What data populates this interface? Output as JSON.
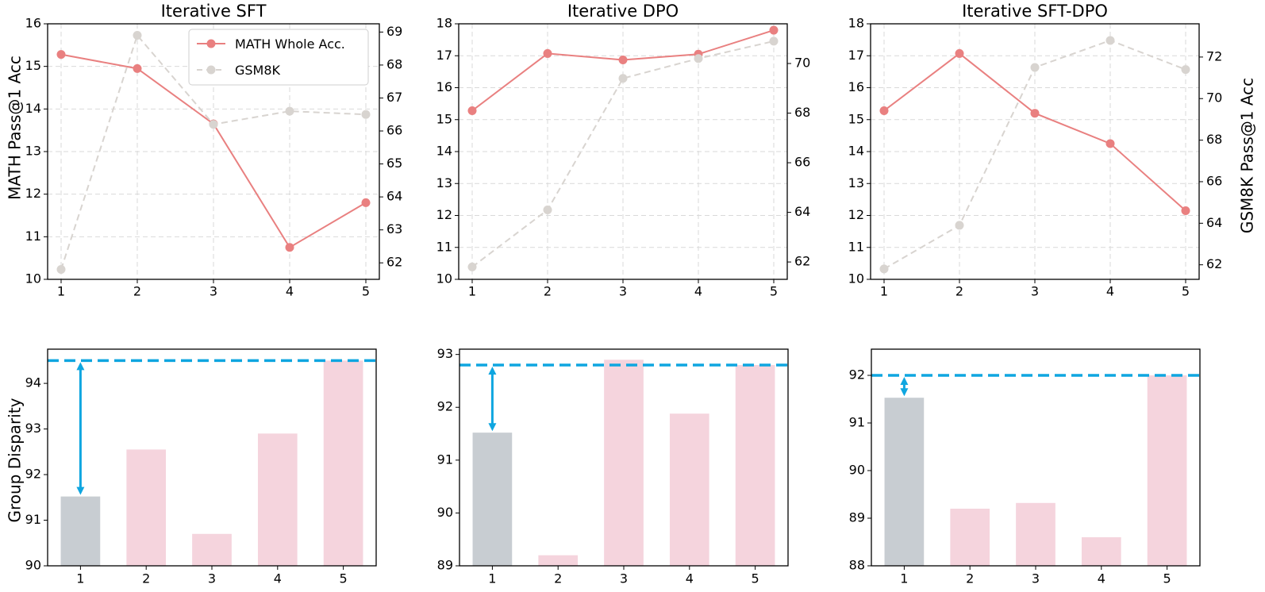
{
  "colors": {
    "math": "#e98080",
    "gsm": "#d8d4d0",
    "bar_base": "#c8cdd2",
    "bar": "#f5d4dd",
    "ref": "#0fa6e0"
  },
  "legend": {
    "math": "MATH Whole Acc.",
    "gsm": "GSM8K"
  },
  "axis_labels": {
    "left": "MATH Pass@1 Acc",
    "right": "GSM8K Pass@1 Acc",
    "bottom_left": "Group Disparity"
  },
  "chart_data": [
    {
      "type": "line",
      "title": "Iterative SFT",
      "x": [
        "1",
        "2",
        "3",
        "4",
        "5"
      ],
      "ylim": [
        10,
        16
      ],
      "y_ticks": [
        "10",
        "11",
        "12",
        "13",
        "14",
        "15",
        "16"
      ],
      "y2lim": [
        61.5,
        69.25
      ],
      "y2_ticks": [
        "62",
        "63",
        "64",
        "65",
        "66",
        "67",
        "68",
        "69"
      ],
      "series": [
        {
          "name": "MATH Whole Acc.",
          "axis": "left",
          "values": [
            15.28,
            14.95,
            13.65,
            10.75,
            11.8
          ]
        },
        {
          "name": "GSM8K",
          "axis": "right",
          "values": [
            61.8,
            68.9,
            66.2,
            66.6,
            66.5
          ]
        }
      ],
      "legend": "top-right",
      "grid": true
    },
    {
      "type": "line",
      "title": "Iterative DPO",
      "x": [
        "1",
        "2",
        "3",
        "4",
        "5"
      ],
      "ylim": [
        10,
        18
      ],
      "y_ticks": [
        "10",
        "11",
        "12",
        "13",
        "14",
        "15",
        "16",
        "17",
        "18"
      ],
      "y2lim": [
        61.3,
        71.6
      ],
      "y2_ticks": [
        "62",
        "64",
        "66",
        "68",
        "70"
      ],
      "series": [
        {
          "name": "MATH Whole Acc.",
          "axis": "left",
          "values": [
            15.28,
            17.07,
            16.87,
            17.05,
            17.8
          ]
        },
        {
          "name": "GSM8K",
          "axis": "right",
          "values": [
            61.8,
            64.1,
            69.4,
            70.2,
            70.9
          ]
        }
      ],
      "grid": true
    },
    {
      "type": "line",
      "title": "Iterative SFT-DPO",
      "x": [
        "1",
        "2",
        "3",
        "4",
        "5"
      ],
      "ylim": [
        10,
        18
      ],
      "y_ticks": [
        "10",
        "11",
        "12",
        "13",
        "14",
        "15",
        "16",
        "17",
        "18"
      ],
      "y2lim": [
        61.3,
        73.6
      ],
      "y2_ticks": [
        "62",
        "64",
        "66",
        "68",
        "70",
        "72"
      ],
      "series": [
        {
          "name": "MATH Whole Acc.",
          "axis": "left",
          "values": [
            15.28,
            17.07,
            15.2,
            14.25,
            12.15
          ]
        },
        {
          "name": "GSM8K",
          "axis": "right",
          "values": [
            61.8,
            63.9,
            71.5,
            72.8,
            71.4
          ]
        }
      ],
      "grid": true
    },
    {
      "type": "bar",
      "categories": [
        "1",
        "2",
        "3",
        "4",
        "5"
      ],
      "values": [
        91.52,
        92.55,
        90.7,
        92.9,
        94.5
      ],
      "ylim": [
        90,
        94.75
      ],
      "y_ticks": [
        "90",
        "91",
        "92",
        "93",
        "94"
      ],
      "reference_line": 94.5
    },
    {
      "type": "bar",
      "categories": [
        "1",
        "2",
        "3",
        "4",
        "5"
      ],
      "values": [
        91.52,
        89.2,
        92.9,
        91.88,
        92.8
      ],
      "ylim": [
        89,
        93.1
      ],
      "y_ticks": [
        "89",
        "90",
        "91",
        "92",
        "93"
      ],
      "reference_line": 92.8
    },
    {
      "type": "bar",
      "categories": [
        "1",
        "2",
        "3",
        "4",
        "5"
      ],
      "values": [
        91.53,
        89.2,
        89.32,
        88.6,
        92.0
      ],
      "ylim": [
        88,
        92.55
      ],
      "y_ticks": [
        "88",
        "89",
        "90",
        "91",
        "92"
      ],
      "reference_line": 92.0
    }
  ]
}
